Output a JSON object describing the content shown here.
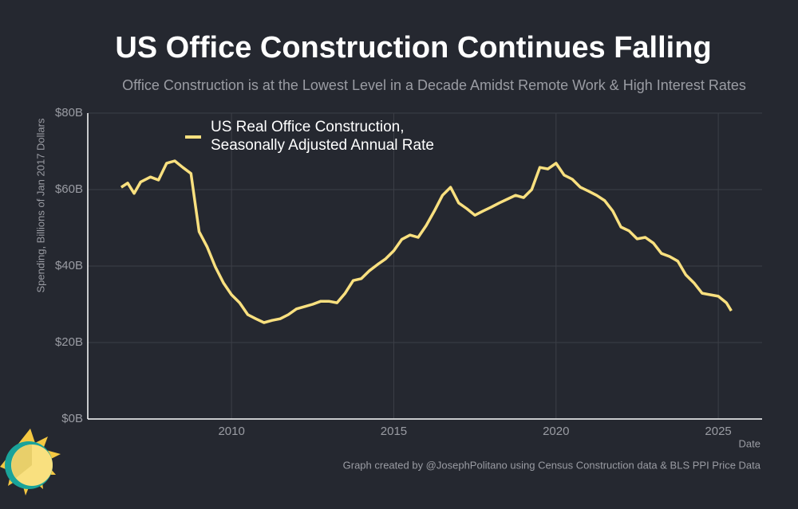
{
  "chart_data": {
    "type": "line",
    "title": "US Office Construction Continues Falling",
    "subtitle": "Office Construction is at the Lowest Level in a Decade Amidst Remote Work & High Interest Rates",
    "y_label": "Spending, Billions of Jan 2017 Dollars",
    "x_label": "Date",
    "caption": "Graph created by @JosephPolitano using Census Construction data & BLS PPI Price Data",
    "x": [
      2006.6,
      2006.8,
      2007.0,
      2007.2,
      2007.5,
      2007.75,
      2008.0,
      2008.25,
      2008.5,
      2008.75,
      2009.0,
      2009.25,
      2009.5,
      2009.75,
      2010.0,
      2010.25,
      2010.5,
      2010.75,
      2011.0,
      2011.25,
      2011.5,
      2011.75,
      2012.0,
      2012.25,
      2012.5,
      2012.75,
      2013.0,
      2013.25,
      2013.5,
      2013.75,
      2014.0,
      2014.25,
      2014.5,
      2014.75,
      2015.0,
      2015.25,
      2015.5,
      2015.75,
      2016.0,
      2016.25,
      2016.5,
      2016.75,
      2017.0,
      2017.25,
      2017.5,
      2017.75,
      2018.0,
      2018.25,
      2018.5,
      2018.75,
      2019.0,
      2019.25,
      2019.5,
      2019.75,
      2020.0,
      2020.25,
      2020.5,
      2020.75,
      2021.0,
      2021.25,
      2021.5,
      2021.75,
      2022.0,
      2022.25,
      2022.5,
      2022.75,
      2023.0,
      2023.25,
      2023.5,
      2023.75,
      2024.0,
      2024.25,
      2024.5,
      2024.75,
      2025.0,
      2025.25,
      2025.4
    ],
    "series": [
      {
        "name": "US Real Office Construction, Seasonally Adjusted Annual Rate",
        "color": "#f9e07f",
        "values": [
          60.6,
          61.7,
          59,
          62,
          63.3,
          62.5,
          66.9,
          67.5,
          65.8,
          64.2,
          49,
          45,
          39.8,
          35.6,
          32.5,
          30.4,
          27.3,
          26.2,
          25.2,
          25.8,
          26.2,
          27.3,
          28.8,
          29.4,
          30,
          30.8,
          30.8,
          30.4,
          32.9,
          36.2,
          36.7,
          38.8,
          40.4,
          41.9,
          44,
          47,
          48.1,
          47.5,
          50.6,
          54.4,
          58.5,
          60.6,
          56.5,
          55,
          53.3,
          54.4,
          55.4,
          56.5,
          57.5,
          58.5,
          57.9,
          60,
          65.8,
          65.4,
          66.9,
          63.8,
          62.7,
          60.6,
          59.6,
          58.5,
          57.1,
          54.4,
          50.2,
          49.2,
          47.1,
          47.5,
          46,
          43.3,
          42.5,
          41.3,
          37.7,
          35.6,
          32.9,
          32.5,
          32.1,
          30.4,
          28.3
        ]
      }
    ],
    "xlim": [
      2005.57,
      2026.35
    ],
    "xticks": [
      2010,
      2015,
      2020,
      2025
    ],
    "ylim": [
      0,
      80
    ],
    "yticks": [
      {
        "value": 0,
        "label": "$0B"
      },
      {
        "value": 20,
        "label": "$20B"
      },
      {
        "value": 40,
        "label": "$40B"
      },
      {
        "value": 60,
        "label": "$60B"
      },
      {
        "value": 80,
        "label": "$80B"
      }
    ],
    "grid": true,
    "legend": "top-left"
  }
}
